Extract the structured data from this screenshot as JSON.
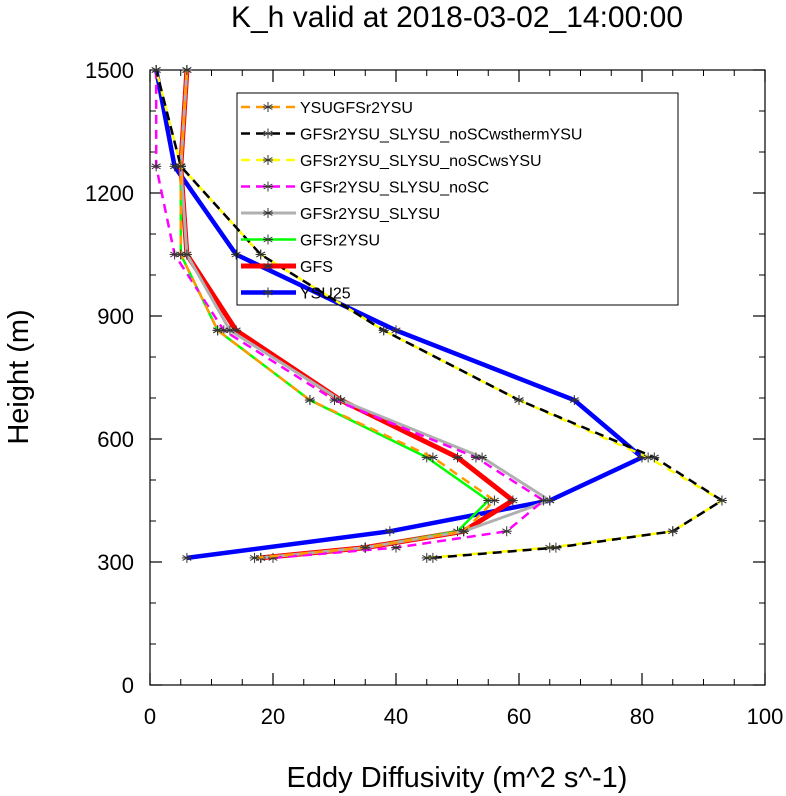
{
  "chart_data": {
    "type": "line",
    "title": "K_h valid at 2018-03-02_14:00:00",
    "xlabel": "Eddy Diffusivity (m^2 s^-1)",
    "ylabel": "Height (m)",
    "xlim": [
      0,
      100
    ],
    "ylim": [
      0,
      1500
    ],
    "x_ticks": [
      0,
      20,
      40,
      60,
      80,
      100
    ],
    "y_ticks": [
      0,
      300,
      600,
      900,
      1200,
      1500
    ],
    "x_tick_labels": [
      "0",
      "20",
      "40",
      "60",
      "80",
      "100"
    ],
    "y_tick_labels": [
      "0",
      "300",
      "600",
      "900",
      "1200",
      "1500"
    ],
    "legend_position": "upper-center",
    "series": [
      {
        "name": "YSU25",
        "color": "#0000ff",
        "width": 4.5,
        "dash": "",
        "points": [
          [
            6,
            310
          ],
          [
            39,
            375
          ],
          [
            65,
            450
          ],
          [
            80,
            555
          ],
          [
            69,
            695
          ],
          [
            40,
            865
          ],
          [
            14,
            1050
          ],
          [
            4,
            1265
          ],
          [
            1,
            1500
          ]
        ]
      },
      {
        "name": "GFS",
        "color": "#ff0000",
        "width": 5,
        "dash": "",
        "points": [
          [
            18,
            310
          ],
          [
            35,
            335
          ],
          [
            51,
            375
          ],
          [
            59,
            450
          ],
          [
            50,
            555
          ],
          [
            31,
            695
          ],
          [
            14,
            865
          ],
          [
            6,
            1050
          ],
          [
            5,
            1265
          ],
          [
            6,
            1500
          ]
        ]
      },
      {
        "name": "GFSr2YSU",
        "color": "#00ff00",
        "width": 2.5,
        "dash": "",
        "points": [
          [
            18,
            310
          ],
          [
            35,
            335
          ],
          [
            50,
            375
          ],
          [
            55,
            450
          ],
          [
            45,
            555
          ],
          [
            26,
            695
          ],
          [
            11,
            865
          ],
          [
            5,
            1050
          ],
          [
            5,
            1265
          ],
          [
            6,
            1500
          ]
        ]
      },
      {
        "name": "GFSr2YSU_SLYSU",
        "color": "#b0b0b0",
        "width": 3,
        "dash": "",
        "points": [
          [
            18,
            310
          ],
          [
            35,
            335
          ],
          [
            51,
            375
          ],
          [
            65,
            450
          ],
          [
            54,
            555
          ],
          [
            31,
            695
          ],
          [
            13,
            865
          ],
          [
            6,
            1050
          ],
          [
            5,
            1265
          ],
          [
            6,
            1500
          ]
        ]
      },
      {
        "name": "GFSr2YSU_SLYSU_noSC",
        "color": "#ff00ff",
        "width": 2.5,
        "dash": "9,6",
        "points": [
          [
            20,
            310
          ],
          [
            40,
            335
          ],
          [
            58,
            375
          ],
          [
            64,
            450
          ],
          [
            53,
            555
          ],
          [
            30,
            695
          ],
          [
            12,
            865
          ],
          [
            4,
            1050
          ],
          [
            1,
            1265
          ],
          [
            1,
            1500
          ]
        ]
      },
      {
        "name": "GFSr2YSU_SLYSU_noSCwsYSU",
        "color": "#ffff00",
        "width": 2.5,
        "dash": "9,6",
        "points": [
          [
            45,
            310
          ],
          [
            65,
            335
          ],
          [
            85,
            375
          ],
          [
            93,
            450
          ],
          [
            81,
            555
          ],
          [
            60,
            695
          ],
          [
            38,
            865
          ],
          [
            18,
            1050
          ],
          [
            5,
            1265
          ],
          [
            1,
            1500
          ]
        ]
      },
      {
        "name": "GFSr2YSU_SLYSU_noSCwsthermYSU",
        "color": "#000000",
        "width": 2.5,
        "dash": "9,6",
        "points": [
          [
            46,
            310
          ],
          [
            66,
            335
          ],
          [
            85,
            375
          ],
          [
            93,
            450
          ],
          [
            82,
            555
          ],
          [
            60,
            695
          ],
          [
            38,
            865
          ],
          [
            18,
            1050
          ],
          [
            5,
            1265
          ],
          [
            1,
            1500
          ]
        ]
      },
      {
        "name": "YSUGFSr2YSU",
        "color": "#ff9900",
        "width": 2.5,
        "dash": "9,6",
        "points": [
          [
            17,
            310
          ],
          [
            35,
            335
          ],
          [
            51,
            375
          ],
          [
            56,
            450
          ],
          [
            46,
            555
          ],
          [
            26,
            695
          ],
          [
            11,
            865
          ],
          [
            5,
            1050
          ],
          [
            5,
            1265
          ],
          [
            6,
            1500
          ]
        ]
      }
    ],
    "legend_order": [
      "YSUGFSr2YSU",
      "GFSr2YSU_SLYSU_noSCwsthermYSU",
      "GFSr2YSU_SLYSU_noSCwsYSU",
      "GFSr2YSU_SLYSU_noSC",
      "GFSr2YSU_SLYSU",
      "GFSr2YSU",
      "GFS",
      "YSU25"
    ]
  }
}
